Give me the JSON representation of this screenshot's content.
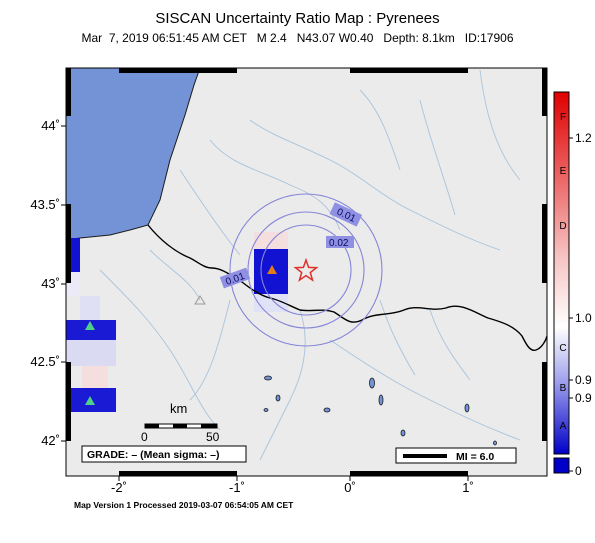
{
  "title": "SISCAN Uncertainty Ratio Map : Pyrenees",
  "subtitle": "Mar  7, 2019 06:51:45 AM CET   M 2.4   N43.07 W0.40   Depth: 8.1km   ID:17906",
  "footer": "Map Version 1 Processed 2019-03-07 06:54:05 AM CET",
  "lat_labels": [
    "44˚",
    "43.5˚",
    "43˚",
    "42.5˚",
    "42˚"
  ],
  "lon_labels": [
    "-2˚",
    "-1˚",
    "0˚",
    "1˚"
  ],
  "contour_labels": [
    "0.01",
    "0.02",
    "0.01"
  ],
  "scale": {
    "title": "km",
    "min": "0",
    "max": "50"
  },
  "grade_box": "GRADE: – (Mean sigma: –)",
  "mi_box": "MI = 6.0",
  "colorbar": {
    "letters": [
      "F",
      "E",
      "D",
      "C",
      "B",
      "A"
    ],
    "values": [
      "1.2",
      "1.0",
      "0.9",
      "0.9",
      "0"
    ]
  },
  "colors": {
    "sea": "#7493d6",
    "land": "#ebebeb",
    "epicenter": "#e0302a",
    "station_orange": "#e07a1a",
    "station_green": "#4fd08a",
    "contour": "#8585d8"
  },
  "icons": {
    "epicenter": "star-icon",
    "stations": "triangle-icon"
  }
}
